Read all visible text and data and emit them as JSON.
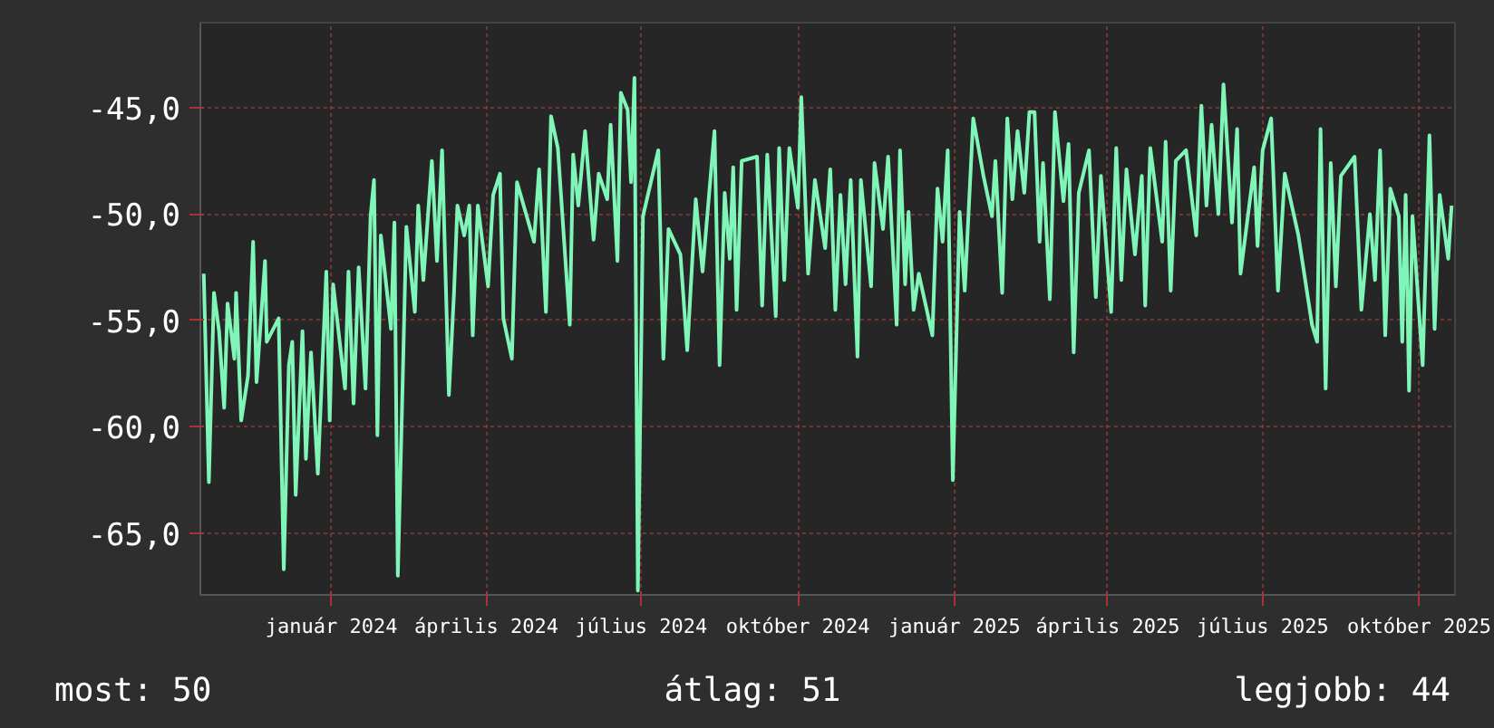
{
  "chart_data": {
    "type": "line",
    "color": "#7ff5b8",
    "xlim": [
      "2023-10-16",
      "2025-10-22"
    ],
    "ylim": [
      -67.9,
      -41.0
    ],
    "xticks": [
      {
        "value": "2024-01-01",
        "label": "január 2024"
      },
      {
        "value": "2024-04-01",
        "label": "április 2024"
      },
      {
        "value": "2024-07-01",
        "label": "július 2024"
      },
      {
        "value": "2024-10-01",
        "label": "október 2024"
      },
      {
        "value": "2025-01-01",
        "label": "január 2025"
      },
      {
        "value": "2025-04-01",
        "label": "április 2025"
      },
      {
        "value": "2025-07-01",
        "label": "július 2025"
      },
      {
        "value": "2025-10-01",
        "label": "október 2025"
      }
    ],
    "yticks": [
      {
        "value": -45,
        "label": "-45,0"
      },
      {
        "value": -50,
        "label": "-50,0"
      },
      {
        "value": -55,
        "label": "-55,0"
      },
      {
        "value": -60,
        "label": "-60,0"
      },
      {
        "value": -65,
        "label": "-65,0"
      }
    ],
    "grid": true,
    "line_style": "solid",
    "annotations": [
      "most: 50",
      "átlag: 51",
      "legjobb: 44"
    ],
    "x": [
      "2023-10-18",
      "2023-10-21",
      "2023-10-24",
      "2023-10-27",
      "2023-10-30",
      "2023-11-01",
      "2023-11-05",
      "2023-11-06",
      "2023-11-09",
      "2023-11-13",
      "2023-11-16",
      "2023-11-18",
      "2023-11-23",
      "2023-11-24",
      "2023-12-01",
      "2023-12-04",
      "2023-12-07",
      "2023-12-09",
      "2023-12-11",
      "2023-12-15",
      "2023-12-17",
      "2023-12-20",
      "2023-12-24",
      "2023-12-29",
      "2023-12-31",
      "2024-01-02",
      "2024-01-09",
      "2024-01-11",
      "2024-01-14",
      "2024-01-17",
      "2024-01-21",
      "2024-01-24",
      "2024-01-26",
      "2024-01-28",
      "2024-01-30",
      "2024-02-05",
      "2024-02-07",
      "2024-02-09",
      "2024-02-12",
      "2024-02-14",
      "2024-02-19",
      "2024-02-21",
      "2024-02-24",
      "2024-02-29",
      "2024-03-03",
      "2024-03-06",
      "2024-03-10",
      "2024-03-13",
      "2024-03-15",
      "2024-03-19",
      "2024-03-22",
      "2024-03-24",
      "2024-03-27",
      "2024-04-02",
      "2024-04-05",
      "2024-04-09",
      "2024-04-11",
      "2024-04-16",
      "2024-04-19",
      "2024-04-29",
      "2024-05-02",
      "2024-05-06",
      "2024-05-09",
      "2024-05-13",
      "2024-05-20",
      "2024-05-22",
      "2024-05-25",
      "2024-05-29",
      "2024-06-03",
      "2024-06-06",
      "2024-06-11",
      "2024-06-13",
      "2024-06-17",
      "2024-06-19",
      "2024-06-23",
      "2024-06-25",
      "2024-06-27",
      "2024-06-29",
      "2024-07-02",
      "2024-07-11",
      "2024-07-14",
      "2024-07-17",
      "2024-07-24",
      "2024-07-28",
      "2024-08-02",
      "2024-08-06",
      "2024-08-13",
      "2024-08-16",
      "2024-08-19",
      "2024-08-22",
      "2024-08-24",
      "2024-08-26",
      "2024-08-29",
      "2024-09-07",
      "2024-09-10",
      "2024-09-13",
      "2024-09-18",
      "2024-09-20",
      "2024-09-23",
      "2024-09-26",
      "2024-10-01",
      "2024-10-03",
      "2024-10-07",
      "2024-10-11",
      "2024-10-17",
      "2024-10-20",
      "2024-10-23",
      "2024-10-26",
      "2024-10-29",
      "2024-11-01",
      "2024-11-05",
      "2024-11-07",
      "2024-11-13",
      "2024-11-15",
      "2024-11-20",
      "2024-11-23",
      "2024-11-28",
      "2024-11-30",
      "2024-12-03",
      "2024-12-05",
      "2024-12-08",
      "2024-12-11",
      "2024-12-19",
      "2024-12-22",
      "2024-12-25",
      "2024-12-28",
      "2024-12-31",
      "2025-01-04",
      "2025-01-07",
      "2025-01-12",
      "2025-01-18",
      "2025-01-23",
      "2025-01-25",
      "2025-01-29",
      "2025-02-01",
      "2025-02-04",
      "2025-02-07",
      "2025-02-11",
      "2025-02-14",
      "2025-02-17",
      "2025-02-20",
      "2025-02-22",
      "2025-02-26",
      "2025-03-01",
      "2025-03-06",
      "2025-03-09",
      "2025-03-12",
      "2025-03-15",
      "2025-03-21",
      "2025-03-25",
      "2025-03-28",
      "2025-04-03",
      "2025-04-06",
      "2025-04-09",
      "2025-04-12",
      "2025-04-17",
      "2025-04-21",
      "2025-04-23",
      "2025-04-26",
      "2025-05-03",
      "2025-05-05",
      "2025-05-08",
      "2025-05-11",
      "2025-05-17",
      "2025-05-23",
      "2025-05-26",
      "2025-05-29",
      "2025-06-01",
      "2025-06-05",
      "2025-06-08",
      "2025-06-13",
      "2025-06-16",
      "2025-06-18",
      "2025-06-26",
      "2025-06-28",
      "2025-07-01",
      "2025-07-06",
      "2025-07-10",
      "2025-07-14",
      "2025-07-22",
      "2025-07-30",
      "2025-08-02",
      "2025-08-04",
      "2025-08-07",
      "2025-08-10",
      "2025-08-13",
      "2025-08-16",
      "2025-08-24",
      "2025-08-28",
      "2025-09-02",
      "2025-09-05",
      "2025-09-08",
      "2025-09-11",
      "2025-09-14",
      "2025-09-19",
      "2025-09-21",
      "2025-09-23",
      "2025-09-25",
      "2025-09-27",
      "2025-10-03",
      "2025-10-07",
      "2025-10-10",
      "2025-10-13",
      "2025-10-18",
      "2025-10-20"
    ],
    "values": [
      -52.8,
      -62.6,
      -53.7,
      -55.5,
      -59.1,
      -54.2,
      -56.8,
      -53.7,
      -59.7,
      -57.6,
      -51.3,
      -57.9,
      -52.2,
      -56.0,
      -54.9,
      -66.7,
      -57.1,
      -56.0,
      -63.2,
      -55.5,
      -61.5,
      -56.5,
      -62.2,
      -52.7,
      -59.7,
      -53.3,
      -58.2,
      -52.7,
      -58.9,
      -52.5,
      -58.2,
      -50.1,
      -48.4,
      -60.4,
      -51.0,
      -55.4,
      -50.4,
      -67.0,
      -57.4,
      -50.6,
      -54.6,
      -49.6,
      -53.1,
      -47.5,
      -52.2,
      -47.0,
      -58.5,
      -53.7,
      -49.6,
      -51.0,
      -49.6,
      -55.7,
      -49.6,
      -53.4,
      -49.1,
      -48.1,
      -54.9,
      -56.8,
      -48.5,
      -51.3,
      -47.9,
      -54.6,
      -45.4,
      -46.9,
      -55.2,
      -47.2,
      -49.6,
      -46.1,
      -51.2,
      -48.1,
      -49.3,
      -45.8,
      -52.2,
      -44.3,
      -45.1,
      -48.5,
      -43.6,
      -67.7,
      -50.1,
      -47.0,
      -56.8,
      -50.7,
      -51.9,
      -56.4,
      -49.3,
      -52.7,
      -46.1,
      -57.1,
      -49.0,
      -52.1,
      -47.8,
      -54.5,
      -47.5,
      -47.3,
      -54.3,
      -47.2,
      -54.8,
      -46.9,
      -53.1,
      -46.9,
      -49.7,
      -44.5,
      -52.8,
      -48.4,
      -51.6,
      -47.9,
      -54.5,
      -49.1,
      -53.3,
      -48.4,
      -56.7,
      -48.4,
      -53.4,
      -47.6,
      -50.7,
      -47.3,
      -55.2,
      -47.0,
      -53.3,
      -49.9,
      -54.5,
      -52.8,
      -55.7,
      -48.8,
      -51.3,
      -47.0,
      -62.5,
      -49.9,
      -53.6,
      -45.5,
      -48.2,
      -50.1,
      -47.5,
      -53.7,
      -45.5,
      -49.3,
      -46.1,
      -49.0,
      -45.2,
      -45.2,
      -51.3,
      -47.6,
      -54.0,
      -45.2,
      -49.4,
      -46.7,
      -56.5,
      -49.0,
      -47.0,
      -53.9,
      -48.2,
      -54.6,
      -46.9,
      -53.1,
      -47.9,
      -51.9,
      -48.2,
      -54.3,
      -46.9,
      -51.3,
      -46.6,
      -53.6,
      -47.5,
      -47.0,
      -51.0,
      -44.9,
      -49.6,
      -45.8,
      -50.0,
      -43.9,
      -50.4,
      -46.0,
      -52.8,
      -47.8,
      -51.5,
      -47.0,
      -45.5,
      -53.6,
      -48.1,
      -51.0,
      -55.2,
      -56.0,
      -46.0,
      -58.2,
      -47.6,
      -53.4,
      -48.2,
      -47.3,
      -54.5,
      -50.0,
      -53.1,
      -47.0,
      -55.7,
      -48.8,
      -50.1,
      -56.0,
      -49.1,
      -58.3,
      -50.1,
      -57.1,
      -46.3,
      -55.4,
      -49.1,
      -52.1,
      -49.6
    ]
  }
}
